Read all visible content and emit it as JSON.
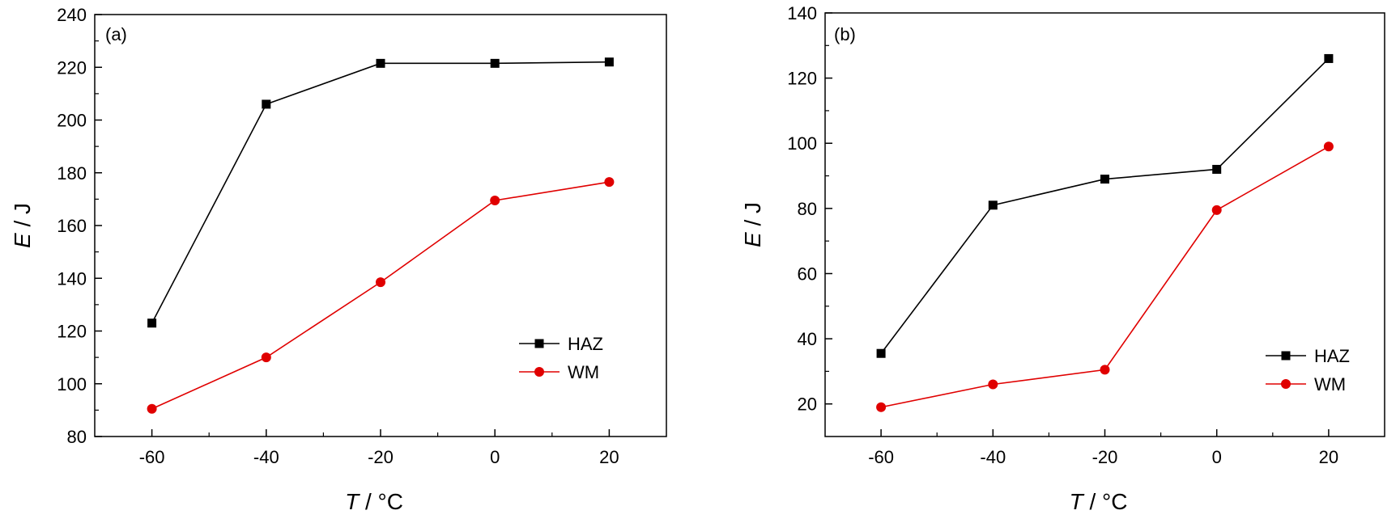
{
  "chart_data": [
    {
      "type": "line",
      "panel_label": "(a)",
      "xlabel": {
        "var": "T",
        "unit": " / °C"
      },
      "ylabel": {
        "var": "E",
        "unit": " / J"
      },
      "xlim": [
        -70,
        30
      ],
      "ylim": [
        80,
        240
      ],
      "x_major_ticks": [
        -60,
        -40,
        -20,
        0,
        20
      ],
      "x_minor_ticks": [
        -50,
        -30,
        -10,
        10
      ],
      "y_major_ticks": [
        80,
        100,
        120,
        140,
        160,
        180,
        200,
        220,
        240
      ],
      "y_minor_ticks": [
        90,
        110,
        130,
        150,
        170,
        190,
        210,
        230
      ],
      "x": [
        -60,
        -40,
        -20,
        0,
        20
      ],
      "series": [
        {
          "name": "HAZ",
          "color": "#000000",
          "marker": "square",
          "values": [
            123,
            206,
            221.5,
            221.5,
            222
          ]
        },
        {
          "name": "WM",
          "color": "#e00000",
          "marker": "circle",
          "values": [
            90.5,
            110,
            138.5,
            169.5,
            176.5
          ]
        }
      ],
      "legend_position": "lower-right",
      "grid": false
    },
    {
      "type": "line",
      "panel_label": "(b)",
      "xlabel": {
        "var": "T",
        "unit": " / °C"
      },
      "ylabel": {
        "var": "E",
        "unit": " / J"
      },
      "xlim": [
        -70,
        30
      ],
      "ylim": [
        10,
        140
      ],
      "x_major_ticks": [
        -60,
        -40,
        -20,
        0,
        20
      ],
      "x_minor_ticks": [
        -50,
        -30,
        -10,
        10
      ],
      "y_major_ticks": [
        20,
        40,
        60,
        80,
        100,
        120,
        140
      ],
      "y_minor_ticks": [
        30,
        50,
        70,
        90,
        110,
        130
      ],
      "x": [
        -60,
        -40,
        -20,
        0,
        20
      ],
      "series": [
        {
          "name": "HAZ",
          "color": "#000000",
          "marker": "square",
          "values": [
            35.5,
            81,
            89,
            92,
            126
          ]
        },
        {
          "name": "WM",
          "color": "#e00000",
          "marker": "circle",
          "values": [
            19,
            26,
            30.5,
            79.5,
            99
          ]
        }
      ],
      "legend_position": "lower-right",
      "grid": false
    }
  ]
}
